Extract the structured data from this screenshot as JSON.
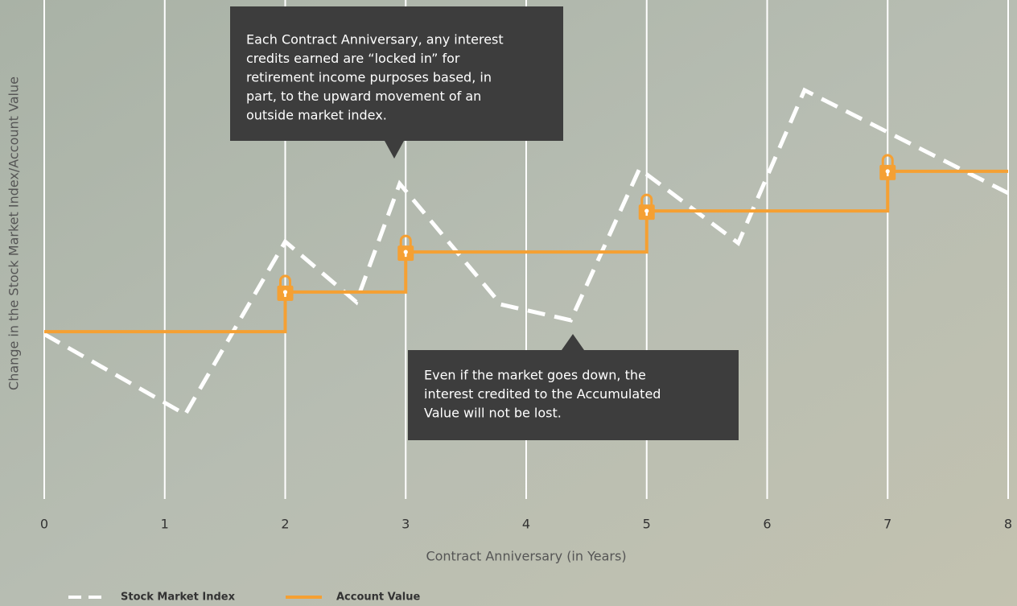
{
  "chart_data": {
    "type": "line",
    "x_label": "Contract Anniversary (in Years)",
    "y_label": "Change in the Stock Market Index/Account Value",
    "xlim": [
      0,
      8
    ],
    "xticks": [
      0,
      1,
      2,
      3,
      4,
      5,
      6,
      7,
      8
    ],
    "ylim": [
      0,
      100
    ],
    "grid": true,
    "series": [
      {
        "name": "Stock Market Index",
        "color": "#ffffff",
        "dash": true,
        "x": [
          0,
          1.17,
          2,
          2.59,
          2.95,
          3.79,
          4.37,
          4.94,
          5.76,
          6.31,
          8
        ],
        "values": [
          33.3,
          17.1,
          52,
          39.8,
          63.7,
          39.3,
          36.1,
          66.7,
          51.7,
          82.6,
          61.8
        ]
      },
      {
        "name": "Account Value",
        "color": "#f5a033",
        "dash": false,
        "x": [
          0,
          2,
          2,
          3,
          3,
          5,
          5,
          7,
          7,
          8
        ],
        "values": [
          33.8,
          33.8,
          41.8,
          41.8,
          49.9,
          49.9,
          58.2,
          58.2,
          66.2,
          66.2
        ]
      }
    ],
    "annotations": [
      {
        "lines": [
          "Each Contract Anniversary, any interest",
          "credits earned are “locked in” for",
          "retirement income purposes based, in",
          "part, to the upward movement of an",
          "outside market index."
        ]
      },
      {
        "lines": [
          "Even if the market goes down, the",
          "interest credited to the Accumulated",
          "Value will not be lost."
        ]
      }
    ]
  }
}
